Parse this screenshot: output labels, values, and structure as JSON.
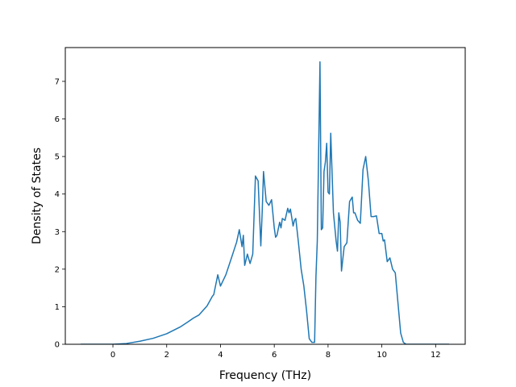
{
  "chart_data": {
    "type": "line",
    "title": "",
    "xlabel": "Frequency (THz)",
    "ylabel": "Density of States",
    "xlim": [
      -1.77,
      13.1
    ],
    "ylim": [
      0,
      7.9
    ],
    "xticks": [
      0,
      2,
      4,
      6,
      8,
      10,
      12
    ],
    "yticks": [
      0,
      1,
      2,
      3,
      4,
      5,
      6,
      7
    ],
    "grid": false,
    "legend": "none",
    "series_color": "#1f77b4",
    "series": [
      {
        "x": [
          -1.2,
          -0.6,
          0.0,
          0.5,
          1.0,
          1.5,
          2.0,
          2.5,
          2.8,
          3.0,
          3.2,
          3.5,
          3.7,
          3.75,
          3.8,
          3.9,
          4.0,
          4.2,
          4.4,
          4.6,
          4.7,
          4.8,
          4.85,
          4.9,
          5.0,
          5.1,
          5.2,
          5.3,
          5.4,
          5.5,
          5.55,
          5.6,
          5.7,
          5.8,
          5.9,
          6.0,
          6.05,
          6.1,
          6.2,
          6.25,
          6.3,
          6.4,
          6.5,
          6.55,
          6.6,
          6.7,
          6.75,
          6.8,
          6.9,
          7.0,
          7.1,
          7.2,
          7.3,
          7.4,
          7.5,
          7.55,
          7.6,
          7.7,
          7.75,
          7.8,
          7.85,
          7.9,
          7.95,
          8.0,
          8.05,
          8.1,
          8.2,
          8.3,
          8.35,
          8.4,
          8.45,
          8.5,
          8.6,
          8.7,
          8.8,
          8.9,
          8.95,
          9.0,
          9.1,
          9.2,
          9.3,
          9.4,
          9.5,
          9.6,
          9.7,
          9.8,
          9.9,
          10.0,
          10.05,
          10.1,
          10.2,
          10.3,
          10.4,
          10.5,
          10.6,
          10.7,
          10.8,
          10.9,
          10.95,
          11.0,
          11.05,
          11.1,
          11.2,
          11.25,
          11.3,
          11.4,
          11.6,
          12.0,
          12.5
        ],
        "y": [
          0.0,
          0.0,
          0.0,
          0.02,
          0.08,
          0.16,
          0.28,
          0.46,
          0.6,
          0.7,
          0.78,
          1.02,
          1.28,
          1.32,
          1.5,
          1.85,
          1.55,
          1.85,
          2.28,
          2.72,
          3.05,
          2.6,
          2.9,
          2.1,
          2.4,
          2.15,
          2.4,
          4.48,
          4.35,
          2.62,
          3.5,
          4.6,
          3.8,
          3.7,
          3.85,
          3.1,
          2.85,
          2.9,
          3.25,
          3.1,
          3.35,
          3.3,
          3.62,
          3.5,
          3.6,
          3.15,
          3.3,
          3.35,
          2.7,
          2.0,
          1.55,
          0.9,
          0.15,
          0.05,
          0.05,
          1.8,
          2.75,
          7.52,
          3.05,
          3.1,
          4.6,
          4.85,
          5.35,
          4.05,
          4.0,
          5.62,
          3.5,
          2.75,
          2.48,
          3.5,
          3.25,
          1.95,
          2.6,
          2.7,
          3.8,
          3.92,
          3.5,
          3.5,
          3.3,
          3.22,
          4.65,
          5.0,
          4.35,
          3.4,
          3.4,
          3.42,
          2.95,
          2.95,
          2.75,
          2.78,
          2.2,
          2.3,
          2.0,
          1.9,
          1.1,
          0.3,
          0.05,
          0.0,
          0.0,
          0.0,
          0.0,
          0.0,
          0.0,
          0.0,
          0.0,
          0.0,
          0.0,
          0.0,
          0.0
        ]
      }
    ]
  }
}
